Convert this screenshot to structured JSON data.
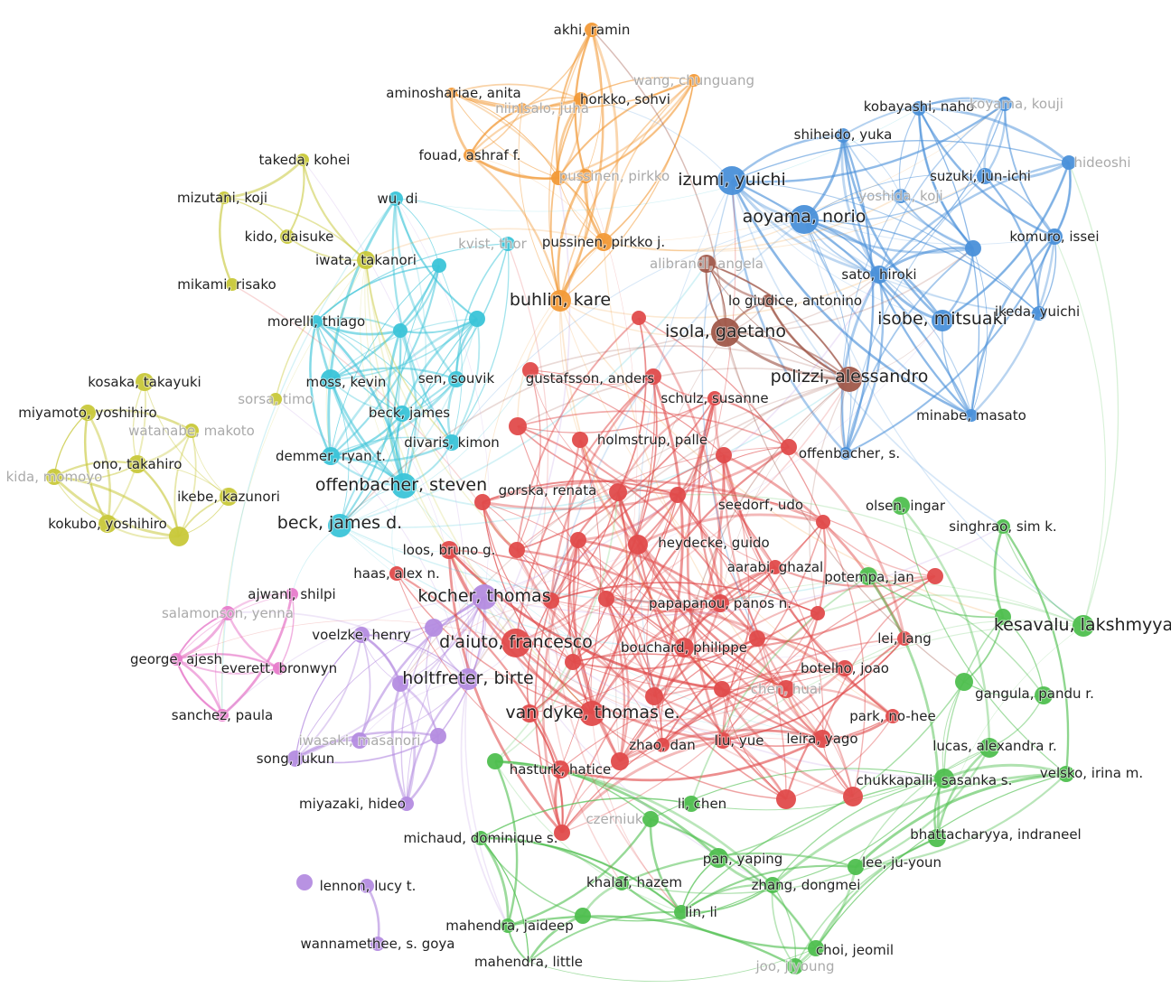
{
  "clusters": {
    "orange": "#f29a38",
    "blue": "#4a90d9",
    "brown": "#a0584a",
    "cyan": "#3bc4d8",
    "yellow": "#c8c83a",
    "pink": "#e77ccb",
    "purple": "#b48ce0",
    "red": "#e04b4b",
    "green": "#4fbf4f"
  },
  "nodes": [
    {
      "label": "akhi, ramin",
      "cluster": "orange"
    },
    {
      "label": "aminoshariae, anita",
      "cluster": "orange"
    },
    {
      "label": "wang, chunguang",
      "cluster": "orange",
      "faint": true
    },
    {
      "label": "niinisalo, juha",
      "cluster": "orange",
      "faint": true
    },
    {
      "label": "horkko, sohvi",
      "cluster": "orange"
    },
    {
      "label": "fouad, ashraf f.",
      "cluster": "orange"
    },
    {
      "label": "pussinen, pirkko",
      "cluster": "orange",
      "faint": true
    },
    {
      "label": "",
      "cluster": "orange"
    },
    {
      "label": "pussinen, pirkko j.",
      "cluster": "orange"
    },
    {
      "label": "buhlin, kare",
      "cluster": "orange"
    },
    {
      "label": "izumi, yuichi",
      "cluster": "blue"
    },
    {
      "label": "aoyama, norio",
      "cluster": "blue"
    },
    {
      "label": "kobayashi, naho",
      "cluster": "blue"
    },
    {
      "label": "koyama, kouji",
      "cluster": "blue",
      "faint": true
    },
    {
      "label": "shiheido, yuka",
      "cluster": "blue"
    },
    {
      "label": "suzuki, jun-ichi",
      "cluster": "blue"
    },
    {
      "label": "hideoshi",
      "cluster": "blue",
      "faint": true
    },
    {
      "label": "yoshida, koji",
      "cluster": "blue",
      "faint": true
    },
    {
      "label": "komuro, issei",
      "cluster": "blue"
    },
    {
      "label": "",
      "cluster": "blue"
    },
    {
      "label": "sato, hiroki",
      "cluster": "blue"
    },
    {
      "label": "isobe, mitsuaki",
      "cluster": "blue"
    },
    {
      "label": "ikeda, yuichi",
      "cluster": "blue"
    },
    {
      "label": "minabe, masato",
      "cluster": "blue"
    },
    {
      "label": "offenbacher, s.",
      "cluster": "blue"
    },
    {
      "label": "alibrandi, angela",
      "cluster": "brown",
      "faint": true
    },
    {
      "label": "lo giudice, antonino",
      "cluster": "brown"
    },
    {
      "label": "isola, gaetano",
      "cluster": "brown"
    },
    {
      "label": "polizzi, alessandro",
      "cluster": "brown"
    },
    {
      "label": "wu, di",
      "cluster": "cyan"
    },
    {
      "label": "kvist, thor",
      "cluster": "cyan",
      "faint": true
    },
    {
      "label": "",
      "cluster": "cyan"
    },
    {
      "label": "moss, kevin",
      "cluster": "cyan"
    },
    {
      "label": "morelli, thiago",
      "cluster": "cyan"
    },
    {
      "label": "",
      "cluster": "cyan"
    },
    {
      "label": "",
      "cluster": "cyan"
    },
    {
      "label": "sen, souvik",
      "cluster": "cyan"
    },
    {
      "label": "beck, james",
      "cluster": "cyan"
    },
    {
      "label": "divaris, kimon",
      "cluster": "cyan"
    },
    {
      "label": "demmer, ryan t.",
      "cluster": "cyan"
    },
    {
      "label": "offenbacher, steven",
      "cluster": "cyan"
    },
    {
      "label": "beck, james d.",
      "cluster": "cyan"
    },
    {
      "label": "takeda, kohei",
      "cluster": "yellow"
    },
    {
      "label": "mizutani, koji",
      "cluster": "yellow"
    },
    {
      "label": "kido, daisuke",
      "cluster": "yellow"
    },
    {
      "label": "iwata, takanori",
      "cluster": "yellow"
    },
    {
      "label": "mikami, risako",
      "cluster": "yellow"
    },
    {
      "label": "sorsa, timo",
      "cluster": "yellow",
      "faint": true
    },
    {
      "label": "kosaka, takayuki",
      "cluster": "yellow"
    },
    {
      "label": "miyamoto, yoshihiro",
      "cluster": "yellow"
    },
    {
      "label": "watanabe, makoto",
      "cluster": "yellow",
      "faint": true
    },
    {
      "label": "ono, takahiro",
      "cluster": "yellow"
    },
    {
      "label": "kida, momoyo",
      "cluster": "yellow",
      "faint": true
    },
    {
      "label": "ikebe, kazunori",
      "cluster": "yellow"
    },
    {
      "label": "kokubo, yoshihiro",
      "cluster": "yellow"
    },
    {
      "label": "",
      "cluster": "yellow"
    },
    {
      "label": "ajwani, shilpi",
      "cluster": "pink"
    },
    {
      "label": "salamonson, yenna",
      "cluster": "pink",
      "faint": true
    },
    {
      "label": "george, ajesh",
      "cluster": "pink"
    },
    {
      "label": "everett, bronwyn",
      "cluster": "pink"
    },
    {
      "label": "sanchez, paula",
      "cluster": "pink"
    },
    {
      "label": "kocher, thomas",
      "cluster": "purple"
    },
    {
      "label": "voelzke, henry",
      "cluster": "purple"
    },
    {
      "label": "",
      "cluster": "purple"
    },
    {
      "label": "holtfreter, birte",
      "cluster": "purple"
    },
    {
      "label": "",
      "cluster": "purple"
    },
    {
      "label": "iwasaki, masanori",
      "cluster": "purple",
      "faint": true
    },
    {
      "label": "",
      "cluster": "purple"
    },
    {
      "label": "song, jukun",
      "cluster": "purple"
    },
    {
      "label": "miyazaki, hideo",
      "cluster": "purple"
    },
    {
      "label": "lennon, lucy t.",
      "cluster": "purple"
    },
    {
      "label": "",
      "cluster": "purple"
    },
    {
      "label": "wannamethee, s. goya",
      "cluster": "purple"
    },
    {
      "label": "gustafsson, anders",
      "cluster": "red"
    },
    {
      "label": "",
      "cluster": "red"
    },
    {
      "label": "schulz, susanne",
      "cluster": "red"
    },
    {
      "label": "holmstrup, palle",
      "cluster": "red"
    },
    {
      "label": "",
      "cluster": "red"
    },
    {
      "label": "",
      "cluster": "red"
    },
    {
      "label": "",
      "cluster": "red"
    },
    {
      "label": "",
      "cluster": "red"
    },
    {
      "label": "gorska, renata",
      "cluster": "red"
    },
    {
      "label": "",
      "cluster": "red"
    },
    {
      "label": "",
      "cluster": "red"
    },
    {
      "label": "seedorf, udo",
      "cluster": "red"
    },
    {
      "label": "heydecke, guido",
      "cluster": "red"
    },
    {
      "label": "loos, bruno g.",
      "cluster": "red"
    },
    {
      "label": "haas, alex n.",
      "cluster": "red"
    },
    {
      "label": "",
      "cluster": "red"
    },
    {
      "label": "",
      "cluster": "red"
    },
    {
      "label": "aarabi, ghazal",
      "cluster": "red"
    },
    {
      "label": "",
      "cluster": "red"
    },
    {
      "label": "papapanou, panos n.",
      "cluster": "red"
    },
    {
      "label": "",
      "cluster": "red"
    },
    {
      "label": "",
      "cluster": "red"
    },
    {
      "label": "d'aiuto, francesco",
      "cluster": "red"
    },
    {
      "label": "bouchard, philippe",
      "cluster": "red"
    },
    {
      "label": "",
      "cluster": "red"
    },
    {
      "label": "",
      "cluster": "red"
    },
    {
      "label": "lei, lang",
      "cluster": "red"
    },
    {
      "label": "botelho, joao",
      "cluster": "red"
    },
    {
      "label": "chen, huai",
      "cluster": "red",
      "faint": true
    },
    {
      "label": "",
      "cluster": "red"
    },
    {
      "label": "",
      "cluster": "red"
    },
    {
      "label": "van dyke, thomas e.",
      "cluster": "red"
    },
    {
      "label": "",
      "cluster": "red"
    },
    {
      "label": "park, no-hee",
      "cluster": "red"
    },
    {
      "label": "zhao, dan",
      "cluster": "red"
    },
    {
      "label": "liu, yue",
      "cluster": "red"
    },
    {
      "label": "leira, yago",
      "cluster": "red"
    },
    {
      "label": "hasturk, hatice",
      "cluster": "red"
    },
    {
      "label": "",
      "cluster": "red"
    },
    {
      "label": "",
      "cluster": "red"
    },
    {
      "label": "",
      "cluster": "red"
    },
    {
      "label": "",
      "cluster": "red"
    },
    {
      "label": "olsen, ingar",
      "cluster": "green"
    },
    {
      "label": "singhrao, sim k.",
      "cluster": "green"
    },
    {
      "label": "kesavalu, lakshmyya",
      "cluster": "green"
    },
    {
      "label": "",
      "cluster": "green"
    },
    {
      "label": "",
      "cluster": "green"
    },
    {
      "label": "gangula, pandu r.",
      "cluster": "green"
    },
    {
      "label": "lucas, alexandra r.",
      "cluster": "green"
    },
    {
      "label": "chukkapalli, sasanka s.",
      "cluster": "green"
    },
    {
      "label": "velsko, irina m.",
      "cluster": "green"
    },
    {
      "label": "",
      "cluster": "green"
    },
    {
      "label": "li, chen",
      "cluster": "green"
    },
    {
      "label": "czerniuk",
      "cluster": "green",
      "faint": true
    },
    {
      "label": "michaud, dominique s.",
      "cluster": "green"
    },
    {
      "label": "bhattacharyya, indraneel",
      "cluster": "green"
    },
    {
      "label": "pan, yaping",
      "cluster": "green"
    },
    {
      "label": "lee, ju-youn",
      "cluster": "green"
    },
    {
      "label": "khalaf, hazem",
      "cluster": "green"
    },
    {
      "label": "zhang, dongmei",
      "cluster": "green"
    },
    {
      "label": "mahendra, jaideep",
      "cluster": "green"
    },
    {
      "label": "",
      "cluster": "green"
    },
    {
      "label": "lin, li",
      "cluster": "green"
    },
    {
      "label": "choi, jeomil",
      "cluster": "green"
    },
    {
      "label": "mahendra, little",
      "cluster": "green"
    },
    {
      "label": "joo, jiyoung",
      "cluster": "green",
      "faint": true
    },
    {
      "label": "potempa, jan",
      "cluster": "green"
    },
    {
      "label": "",
      "cluster": "red"
    }
  ]
}
